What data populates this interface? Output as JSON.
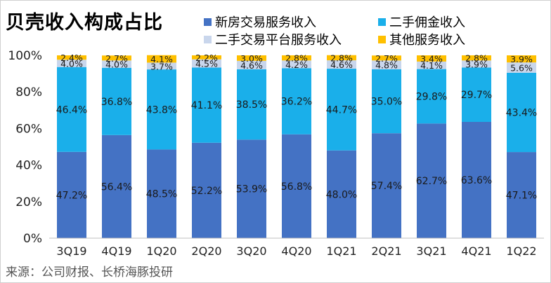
{
  "title": "贝壳收入构成占比",
  "source": "来源：公司财报、长桥海豚投研",
  "chart_data": {
    "type": "bar",
    "stacked": true,
    "percent": true,
    "title": "贝壳收入构成占比",
    "categories": [
      "3Q19",
      "4Q19",
      "1Q20",
      "2Q20",
      "3Q20",
      "4Q20",
      "1Q21",
      "2Q21",
      "3Q21",
      "4Q21",
      "1Q22"
    ],
    "ylim": [
      0,
      100
    ],
    "yticks": [
      "0%",
      "20%",
      "40%",
      "60%",
      "80%",
      "100%"
    ],
    "legend_position": "top-right",
    "series": [
      {
        "name": "新房交易服务收入",
        "color": "#4472C4",
        "label_color": "#1a1a1a",
        "values": [
          47.2,
          56.4,
          48.5,
          52.2,
          53.9,
          56.8,
          48.0,
          57.4,
          62.7,
          63.6,
          47.1
        ],
        "labels": [
          "47.2%",
          "56.4%",
          "48.5%",
          "52.2%",
          "53.9%",
          "56.8%",
          "48.0%",
          "57.4%",
          "62.7%",
          "63.6%",
          "47.1%"
        ]
      },
      {
        "name": "二手佣金收入",
        "color": "#1AAFEA",
        "label_color": "#1a1a1a",
        "values": [
          46.4,
          36.8,
          43.8,
          41.1,
          38.5,
          36.2,
          44.7,
          35.0,
          29.8,
          29.7,
          43.4
        ],
        "labels": [
          "46.4%",
          "36.8%",
          "43.8%",
          "41.1%",
          "38.5%",
          "36.2%",
          "44.7%",
          "35.0%",
          "29.8%",
          "29.7%",
          "43.4%"
        ]
      },
      {
        "name": "二手交易平台服务收入",
        "color": "#C9D6EC",
        "label_color": "#1a1a1a",
        "values": [
          4.0,
          4.0,
          3.7,
          4.5,
          4.6,
          4.2,
          4.6,
          4.8,
          4.1,
          3.9,
          5.6
        ],
        "labels": [
          "4.0%",
          "4.0%",
          "3.7%",
          "4.5%",
          "4.6%",
          "4.2%",
          "4.6%",
          "4.8%",
          "4.1%",
          "3.9%",
          "5.6%"
        ]
      },
      {
        "name": "其他服务收入",
        "color": "#FFC000",
        "label_color": "#1a1a1a",
        "values": [
          2.4,
          2.7,
          4.1,
          2.2,
          3.0,
          2.8,
          2.8,
          2.7,
          3.4,
          2.8,
          3.9
        ],
        "labels": [
          "2.4%",
          "2.7%",
          "4.1%",
          "2.2%",
          "3.0%",
          "2.8%",
          "2.8%",
          "2.7%",
          "3.4%",
          "2.8%",
          "3.9%"
        ]
      }
    ]
  }
}
